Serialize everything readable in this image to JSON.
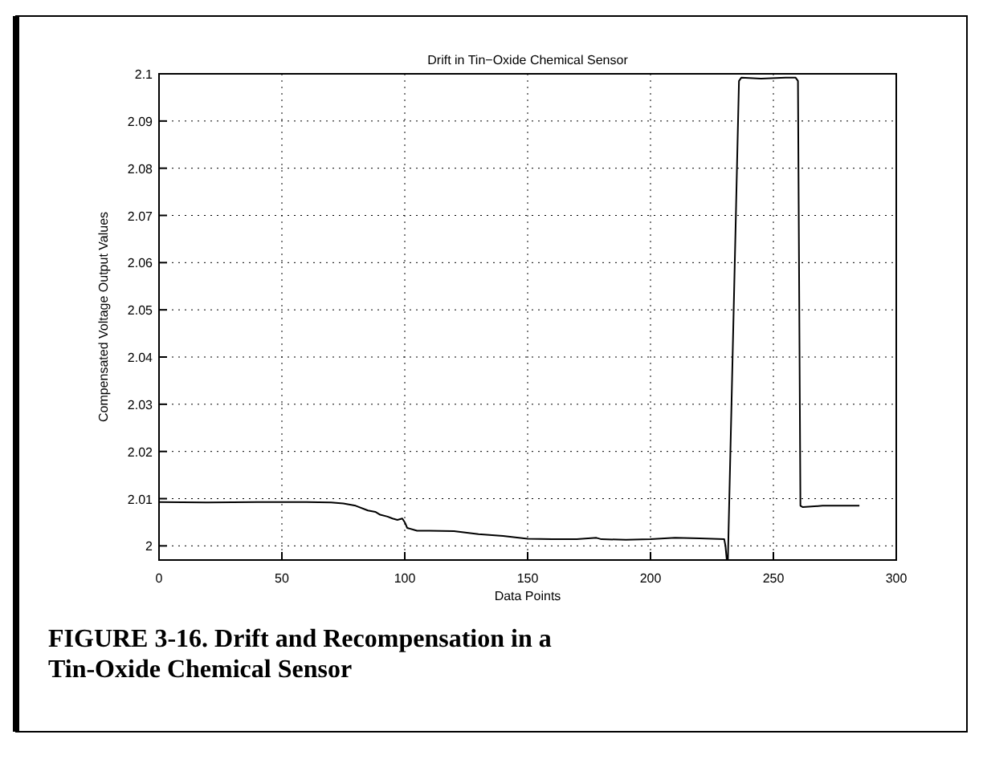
{
  "chart_data": {
    "type": "line",
    "title": "Drift in Tin−Oxide Chemical Sensor",
    "xlabel": "Data Points",
    "ylabel": "Compensated Voltage Output Values",
    "x": [
      0,
      20,
      40,
      60,
      70,
      75,
      80,
      85,
      88,
      90,
      93,
      95,
      97,
      99,
      100,
      101,
      105,
      110,
      120,
      130,
      140,
      150,
      160,
      170,
      178,
      180,
      190,
      200,
      210,
      220,
      230,
      230.5,
      231,
      231.5,
      236,
      237,
      245,
      255,
      259,
      260,
      261,
      262,
      270,
      285
    ],
    "series": [
      {
        "color": "#000000",
        "values": [
          2.0093,
          2.0092,
          2.0093,
          2.0093,
          2.0092,
          2.009,
          2.0085,
          2.0075,
          2.0072,
          2.0066,
          2.0062,
          2.0058,
          2.0055,
          2.0058,
          2.005,
          2.0038,
          2.0032,
          2.0032,
          2.0031,
          2.0025,
          2.0021,
          2.0015,
          2.0014,
          2.0014,
          2.0017,
          2.0014,
          2.0013,
          2.0014,
          2.0017,
          2.0016,
          2.0014,
          2.0,
          1.9972,
          1.9972,
          2.0985,
          2.0992,
          2.099,
          2.0992,
          2.0992,
          2.0985,
          2.0085,
          2.0082,
          2.0085,
          2.0085
        ]
      }
    ],
    "xlim": [
      0,
      300
    ],
    "ylim": [
      1.997,
      2.1
    ],
    "xticks": [
      0,
      50,
      100,
      150,
      200,
      250,
      300
    ],
    "yticks": [
      2,
      2.01,
      2.02,
      2.03,
      2.04,
      2.05,
      2.06,
      2.07,
      2.08,
      2.09,
      2.1
    ],
    "grid": true,
    "line_style": "solid",
    "marker": "none",
    "annotations": [
      "FIGURE 3-16. Drift and Recompensation in a Tin-Oxide Chemical Sensor"
    ]
  }
}
